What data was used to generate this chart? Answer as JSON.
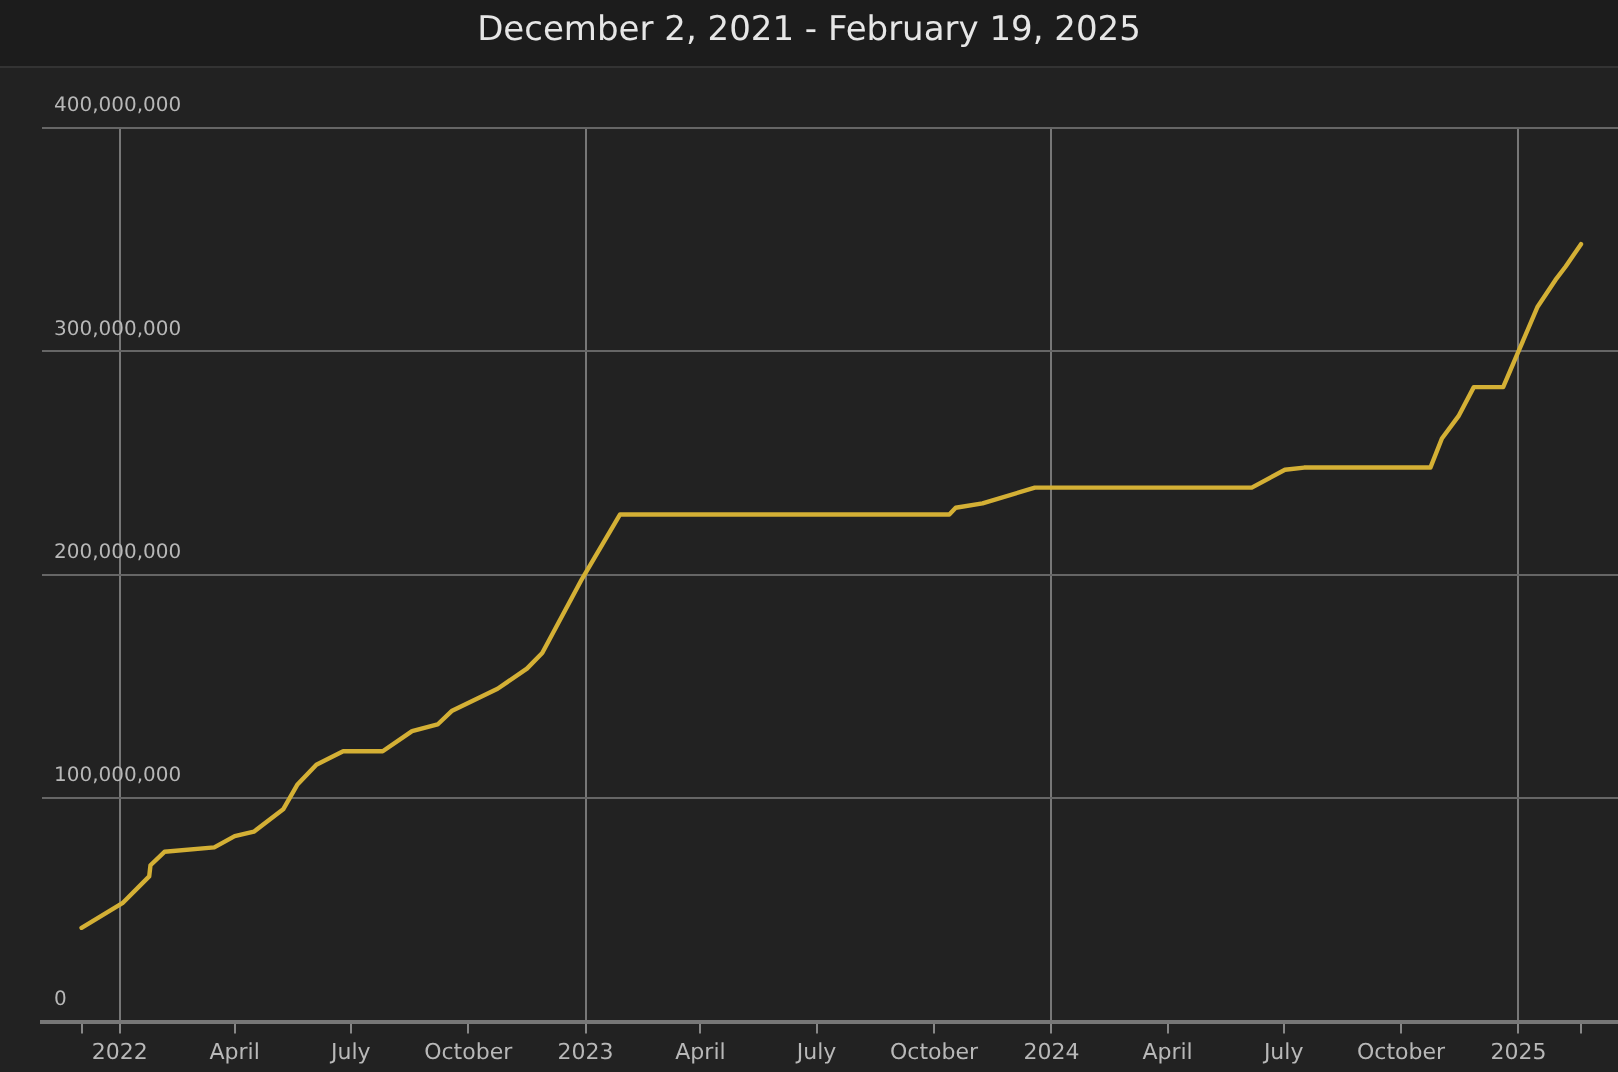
{
  "chart_data": {
    "type": "line",
    "title": "December 2, 2021 - February 19, 2025",
    "x": [
      "2021-12-02",
      "2022-01-03",
      "2022-01-24",
      "2022-01-25",
      "2022-02-05",
      "2022-03-16",
      "2022-04-01",
      "2022-04-16",
      "2022-05-09",
      "2022-05-20",
      "2022-06-04",
      "2022-06-25",
      "2022-07-26",
      "2022-08-18",
      "2022-09-07",
      "2022-09-18",
      "2022-10-24",
      "2022-11-16",
      "2022-11-28",
      "2022-12-29",
      "2023-01-28",
      "2023-10-13",
      "2023-10-18",
      "2023-11-08",
      "2023-12-19",
      "2024-06-06",
      "2024-07-02",
      "2024-07-17",
      "2024-10-24",
      "2024-11-02",
      "2024-11-15",
      "2024-11-27",
      "2024-12-20",
      "2025-01-01",
      "2025-01-16",
      "2025-01-30",
      "2025-02-07",
      "2025-02-19"
    ],
    "series": [
      {
        "color": "#d4b035",
        "values": [
          42000000,
          53000000,
          65000000,
          70000000,
          76000000,
          78000000,
          83000000,
          85000000,
          95000000,
          106000000,
          115000000,
          121000000,
          121000000,
          130000000,
          133000000,
          139000000,
          149000000,
          158000000,
          165000000,
          198000000,
          227000000,
          227000000,
          230000000,
          232000000,
          239000000,
          239000000,
          247000000,
          248000000,
          248000000,
          261000000,
          271000000,
          284000000,
          284000000,
          300000000,
          320000000,
          332000000,
          338000000,
          348000000
        ]
      }
    ],
    "xlim": [
      "2021-11-01",
      "2025-03-20"
    ],
    "xticks": [
      {
        "value": "2021-12-02",
        "label": null
      },
      {
        "value": "2022-01-01",
        "label": "2022"
      },
      {
        "value": "2022-04-01",
        "label": "April"
      },
      {
        "value": "2022-07-01",
        "label": "July"
      },
      {
        "value": "2022-10-01",
        "label": "October"
      },
      {
        "value": "2023-01-01",
        "label": "2023"
      },
      {
        "value": "2023-04-01",
        "label": "April"
      },
      {
        "value": "2023-07-01",
        "label": "July"
      },
      {
        "value": "2023-10-01",
        "label": "October"
      },
      {
        "value": "2024-01-01",
        "label": "2024"
      },
      {
        "value": "2024-04-01",
        "label": "April"
      },
      {
        "value": "2024-07-01",
        "label": "July"
      },
      {
        "value": "2024-10-01",
        "label": "October"
      },
      {
        "value": "2025-01-01",
        "label": "2025"
      },
      {
        "value": "2025-02-19",
        "label": null
      }
    ],
    "ylim": [
      0,
      400000000
    ],
    "yticks": [
      {
        "value": 0,
        "label": "0"
      },
      {
        "value": 100000000,
        "label": "100,000,000"
      },
      {
        "value": 200000000,
        "label": "200,000,000"
      },
      {
        "value": 300000000,
        "label": "300,000,000"
      },
      {
        "value": 400000000,
        "label": "400,000,000"
      }
    ],
    "grid": true,
    "legend": false,
    "marker": "none",
    "line_style": "solid"
  }
}
